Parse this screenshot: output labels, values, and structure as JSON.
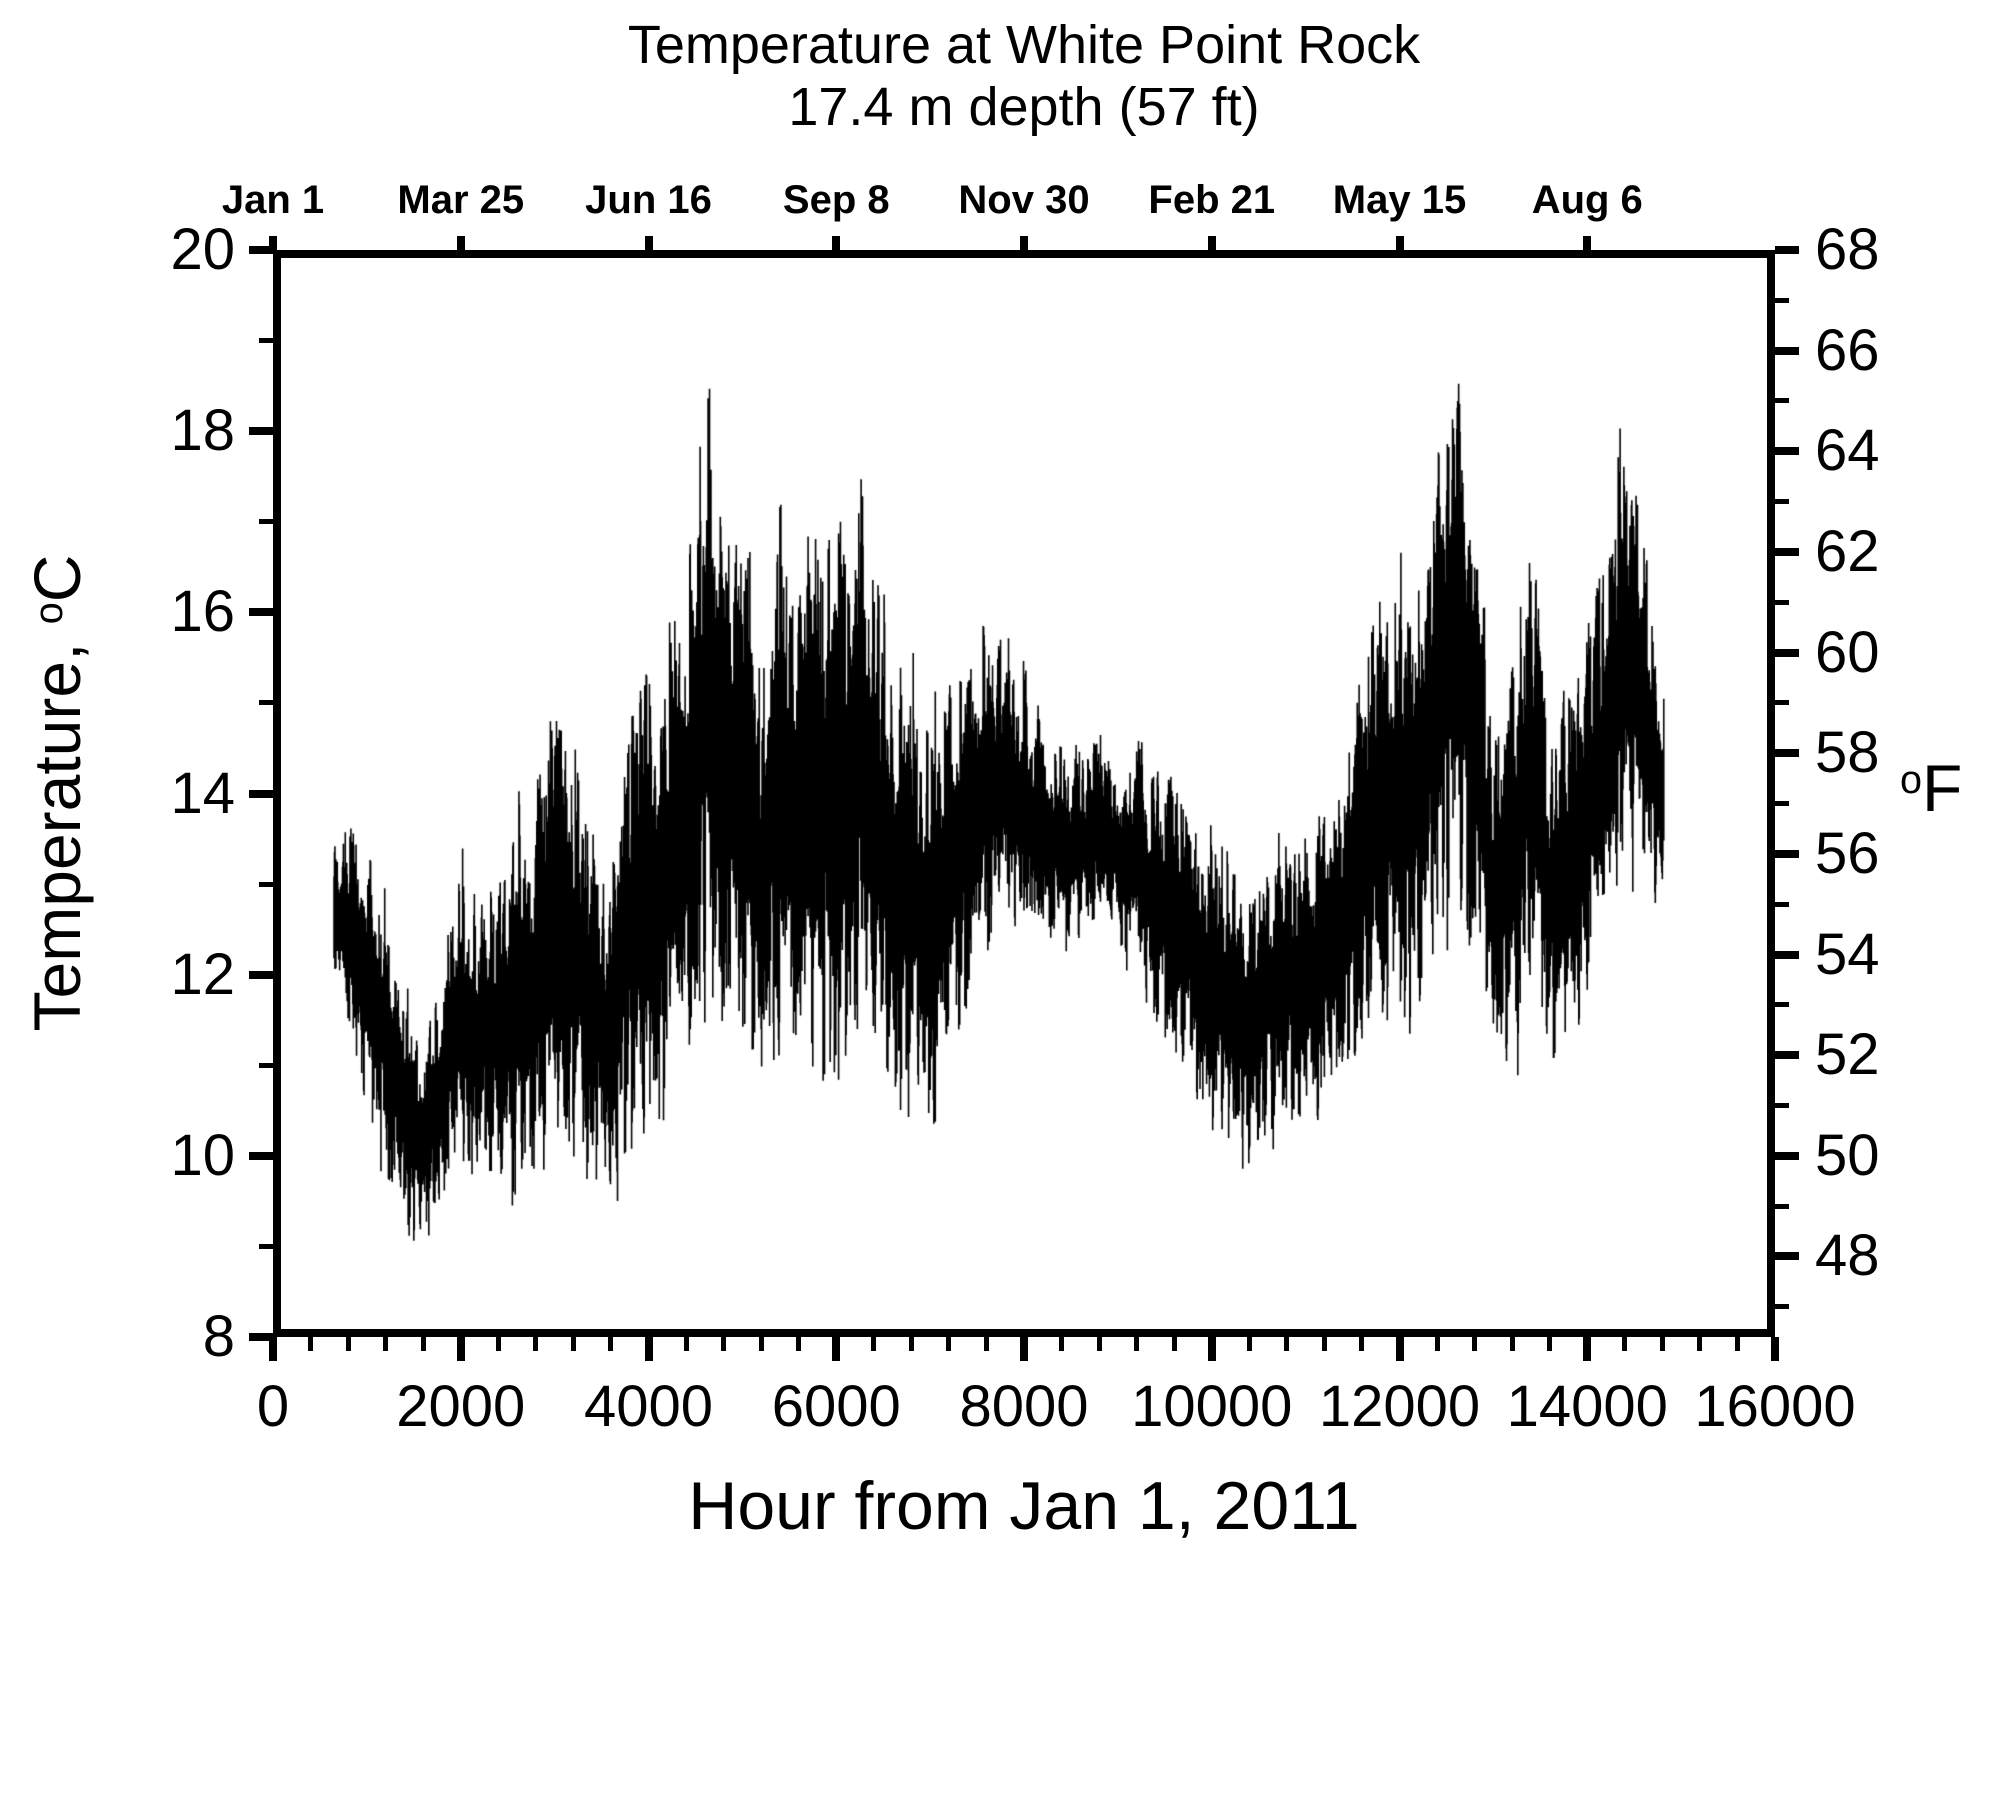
{
  "figure": {
    "background_color": "#ffffff",
    "ink_color": "#000000"
  },
  "chart_data": {
    "type": "line",
    "title": "Temperature at White Point Rock",
    "subtitle": "17.4 m depth (57 ft)",
    "xlabel": "Hour from Jan 1, 2011",
    "ylabel_left": "Temperature, °C",
    "ylabel_left_parts": [
      "Temperature, ",
      "o",
      "C"
    ],
    "ylabel_right": "°F",
    "ylabel_right_parts": [
      "o",
      "F"
    ],
    "legend": "none",
    "grid": "off",
    "series_color": "#000000",
    "x_axis": {
      "range": [
        0,
        16000
      ],
      "major_ticks": [
        0,
        2000,
        4000,
        6000,
        8000,
        10000,
        12000,
        14000,
        16000
      ],
      "minor_step": 400
    },
    "top_axis_dates": [
      {
        "hour": 0,
        "label": "Jan 1"
      },
      {
        "hour": 2000,
        "label": "Mar 25"
      },
      {
        "hour": 4000,
        "label": "Jun 16"
      },
      {
        "hour": 6000,
        "label": "Sep 8"
      },
      {
        "hour": 8000,
        "label": "Nov 30"
      },
      {
        "hour": 10000,
        "label": "Feb 21"
      },
      {
        "hour": 12000,
        "label": "May 15"
      },
      {
        "hour": 14000,
        "label": "Aug 6"
      }
    ],
    "y_axis_celsius": {
      "range": [
        8,
        20
      ],
      "major_ticks": [
        8,
        10,
        12,
        14,
        16,
        18,
        20
      ],
      "minor_step": 1
    },
    "y_axis_fahrenheit": {
      "major_ticks": [
        48,
        50,
        52,
        54,
        56,
        58,
        60,
        62,
        64,
        66,
        68
      ],
      "minor_step": 1,
      "conversion": "F = C*9/5 + 32 (68F aligns with 20C)"
    },
    "series": [
      {
        "name": "Hourly seawater temperature",
        "units_x": "hours since Jan 1, 2011 00:00",
        "units_y": "degrees Celsius",
        "data_start_hour": 650,
        "data_end_hour": 14815,
        "overall_min_c": 8.8,
        "overall_max_c": 19.3,
        "envelope_bins": {
          "note": "per-200-hour envelope (min and max of the dense hourly trace) read from the plot",
          "hours": [
            600,
            800,
            1000,
            1200,
            1400,
            1600,
            1800,
            2000,
            2200,
            2400,
            2600,
            2800,
            3000,
            3200,
            3400,
            3600,
            3800,
            4000,
            4200,
            4400,
            4600,
            4800,
            5000,
            5200,
            5400,
            5600,
            5800,
            6000,
            6200,
            6400,
            6600,
            6800,
            7000,
            7200,
            7400,
            7600,
            7800,
            8000,
            8200,
            8400,
            8600,
            8800,
            9000,
            9200,
            9400,
            9600,
            9800,
            10000,
            10200,
            10400,
            10600,
            10800,
            11000,
            11200,
            11400,
            11600,
            11800,
            12000,
            12200,
            12400,
            12600,
            12800,
            13000,
            13200,
            13400,
            13600,
            13800,
            14000,
            14200,
            14400,
            14600,
            14800
          ],
          "t_min_c": [
            11.9,
            11.3,
            10.3,
            9.6,
            8.9,
            8.8,
            9.2,
            9.6,
            9.7,
            9.5,
            9.4,
            9.3,
            9.6,
            9.9,
            9.2,
            9.1,
            9.7,
            10.0,
            10.3,
            10.6,
            10.8,
            10.9,
            11.0,
            10.4,
            10.6,
            10.8,
            10.4,
            10.5,
            10.6,
            10.5,
            10.3,
            10.0,
            9.9,
            10.7,
            11.5,
            12.0,
            12.2,
            12.3,
            12.2,
            12.0,
            12.2,
            12.4,
            12.2,
            11.8,
            11.2,
            10.9,
            10.6,
            10.2,
            9.9,
            9.8,
            9.9,
            10.0,
            10.2,
            10.4,
            10.6,
            10.9,
            11.0,
            11.2,
            11.3,
            11.8,
            12.3,
            11.9,
            10.7,
            10.5,
            11.0,
            10.7,
            10.9,
            11.3,
            12.0,
            12.4,
            12.5,
            12.4
          ],
          "t_max_c": [
            13.6,
            13.7,
            13.5,
            13.1,
            12.0,
            11.6,
            12.3,
            13.6,
            12.9,
            13.3,
            14.3,
            14.5,
            15.4,
            14.7,
            14.4,
            13.2,
            15.2,
            15.6,
            16.1,
            16.5,
            19.0,
            17.9,
            17.7,
            15.5,
            17.5,
            16.4,
            17.6,
            17.1,
            18.1,
            17.2,
            15.9,
            15.7,
            15.0,
            15.5,
            15.7,
            16.2,
            16.0,
            15.5,
            15.1,
            14.8,
            14.7,
            14.7,
            14.6,
            14.7,
            14.5,
            14.3,
            14.0,
            13.7,
            13.4,
            13.1,
            13.6,
            13.9,
            13.7,
            14.3,
            14.5,
            15.5,
            16.4,
            17.0,
            16.6,
            17.9,
            19.2,
            18.4,
            14.5,
            15.9,
            17.8,
            15.0,
            15.5,
            16.3,
            17.1,
            19.3,
            17.0,
            15.5
          ]
        }
      }
    ]
  }
}
